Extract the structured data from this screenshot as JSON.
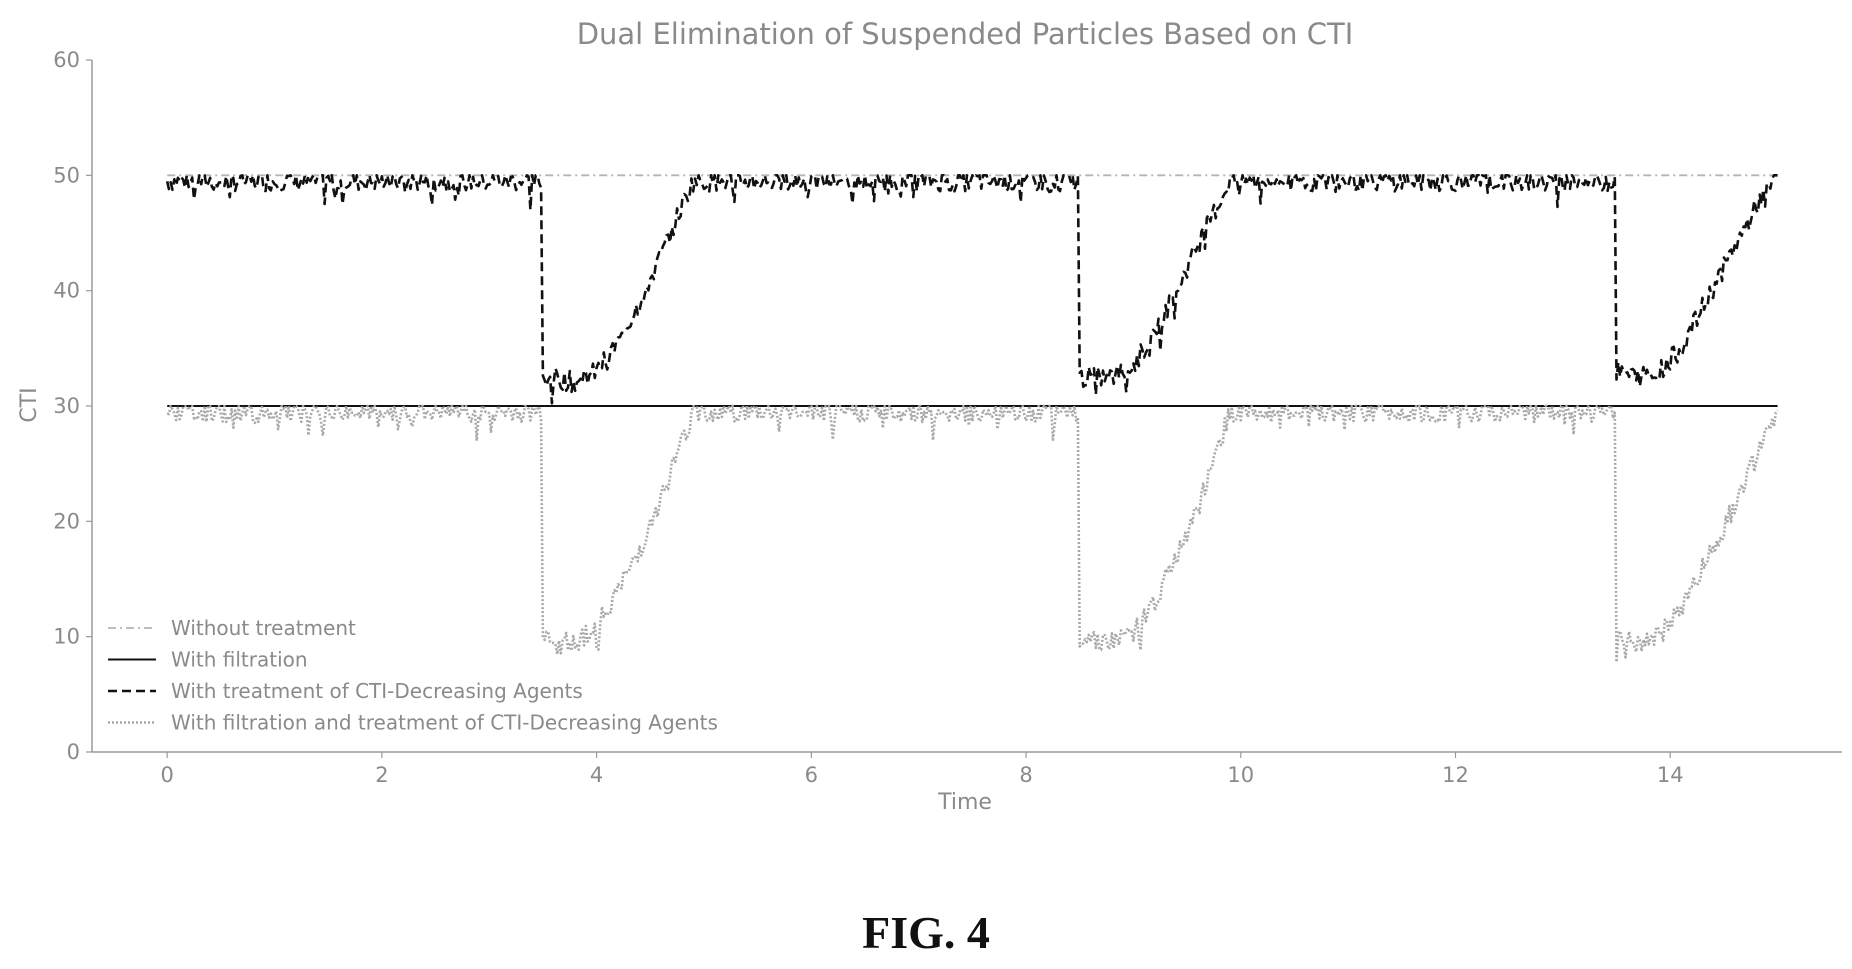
{
  "figure": {
    "caption": "FIG. 4"
  },
  "chart_data": {
    "type": "line",
    "title": "Dual Elimination of Suspended Particles Based on CTI",
    "xlabel": "Time",
    "ylabel": "CTI",
    "xlim": [
      -0.7,
      15.6
    ],
    "ylim": [
      0,
      60
    ],
    "xticks": [
      0,
      2,
      4,
      6,
      8,
      10,
      12,
      14
    ],
    "yticks": [
      0,
      10,
      20,
      30,
      40,
      50,
      60
    ],
    "grid": false,
    "legend_position": "lower-left",
    "treatment_cycles": [
      {
        "start": 3.5,
        "treated_end": 4.9,
        "filtration_end": 3.5
      },
      {
        "start": 8.5,
        "treated_end": 9.9,
        "filtration_end": 9.9
      },
      {
        "start": 13.5,
        "treated_end": 15.0,
        "filtration_end": 15.0
      }
    ],
    "series": [
      {
        "name": "Without treatment",
        "color": "#b5b5b5",
        "style": "dash-dot",
        "x": [
          0,
          15
        ],
        "y": [
          50,
          50
        ]
      },
      {
        "name": "With filtration",
        "color": "#111111",
        "style": "solid",
        "x": [
          0,
          15
        ],
        "y": [
          30,
          30
        ]
      },
      {
        "name": "With treatment of CTI-Decreasing Agents",
        "color": "#111111",
        "style": "dashed",
        "x": [
          0,
          3.49,
          3.5,
          3.6,
          3.8,
          4.0,
          4.2,
          4.4,
          4.6,
          4.8,
          4.9,
          8.49,
          8.5,
          8.6,
          8.8,
          9.0,
          9.2,
          9.4,
          9.6,
          9.9,
          13.49,
          13.5,
          13.7,
          13.9,
          14.1,
          14.3,
          14.5,
          14.7,
          14.9,
          15.0
        ],
        "y": [
          49.5,
          49.5,
          32.5,
          32.5,
          32.0,
          33.0,
          35.5,
          39.0,
          43.0,
          47.5,
          49.5,
          49.5,
          32.5,
          32.5,
          32.5,
          33.5,
          36.5,
          40.0,
          44.0,
          49.5,
          49.5,
          33.0,
          32.5,
          33.0,
          35.0,
          38.5,
          42.0,
          45.5,
          49.0,
          50.0
        ]
      },
      {
        "name": "With filtration and treatment of CTI-Decreasing Agents",
        "color": "#a9a9a9",
        "style": "dotted",
        "x": [
          0,
          3.49,
          3.5,
          3.6,
          3.8,
          4.0,
          4.2,
          4.4,
          4.6,
          4.8,
          4.9,
          8.49,
          8.5,
          8.6,
          8.8,
          9.0,
          9.2,
          9.4,
          9.6,
          9.9,
          13.49,
          13.5,
          13.7,
          13.9,
          14.1,
          14.3,
          14.5,
          14.7,
          14.9,
          15.0
        ],
        "y": [
          29.5,
          29.5,
          10.5,
          10.0,
          9.5,
          11.0,
          14.0,
          17.5,
          22.0,
          27.0,
          29.5,
          29.5,
          10.0,
          10.0,
          9.5,
          10.5,
          13.0,
          17.0,
          21.0,
          29.5,
          29.5,
          10.0,
          9.5,
          10.0,
          12.5,
          16.0,
          19.5,
          23.5,
          27.5,
          29.5
        ]
      }
    ]
  }
}
